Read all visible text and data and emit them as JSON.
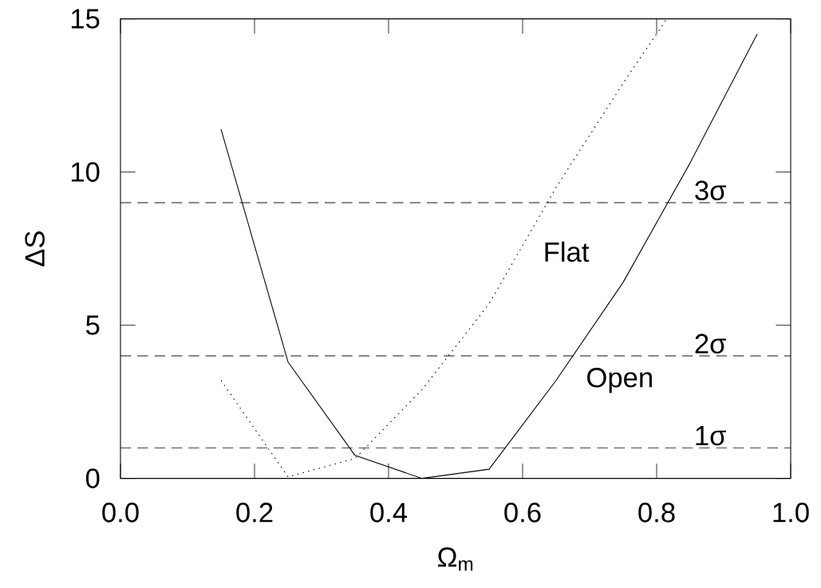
{
  "chart_data": {
    "type": "line",
    "xlabel": "Ω$_{m}$",
    "ylabel": "ΔS",
    "xlim": [
      0,
      1
    ],
    "ylim": [
      0,
      15
    ],
    "xticks": [
      {
        "value": 0,
        "label": "0.0"
      },
      {
        "value": 0.2,
        "label": "0.2"
      },
      {
        "value": 0.4,
        "label": "0.4"
      },
      {
        "value": 0.6,
        "label": "0.6"
      },
      {
        "value": 0.8,
        "label": "0.8"
      },
      {
        "value": 1,
        "label": "1.0"
      }
    ],
    "yticks": [
      0,
      5,
      10,
      15
    ],
    "grid": false,
    "marker": "none",
    "series": [
      {
        "name": "Open",
        "color": "#000000",
        "line_style": "solid",
        "x": [
          0.15,
          0.25,
          0.35,
          0.45,
          0.55,
          0.65,
          0.75,
          0.85,
          0.95
        ],
        "values": [
          11.4,
          3.8,
          0.75,
          0,
          0.3,
          3.2,
          6.4,
          10.3,
          14.5
        ]
      },
      {
        "name": "Flat",
        "color": "#000000",
        "line_style": "dotted",
        "x": [
          0.15,
          0.25,
          0.35,
          0.45,
          0.55,
          0.65,
          0.75,
          0.815
        ],
        "values": [
          3.2,
          0.05,
          0.65,
          2.9,
          5.7,
          9.5,
          12.9,
          15
        ]
      }
    ],
    "ref_lines": [
      {
        "axis": "y",
        "value": 1,
        "label": "1σ",
        "line_style": "dashed",
        "color": "#000000"
      },
      {
        "axis": "y",
        "value": 4,
        "label": "2σ",
        "line_style": "dashed",
        "color": "#000000"
      },
      {
        "axis": "y",
        "value": 9,
        "label": "3σ",
        "line_style": "dashed",
        "color": "#000000"
      }
    ]
  }
}
